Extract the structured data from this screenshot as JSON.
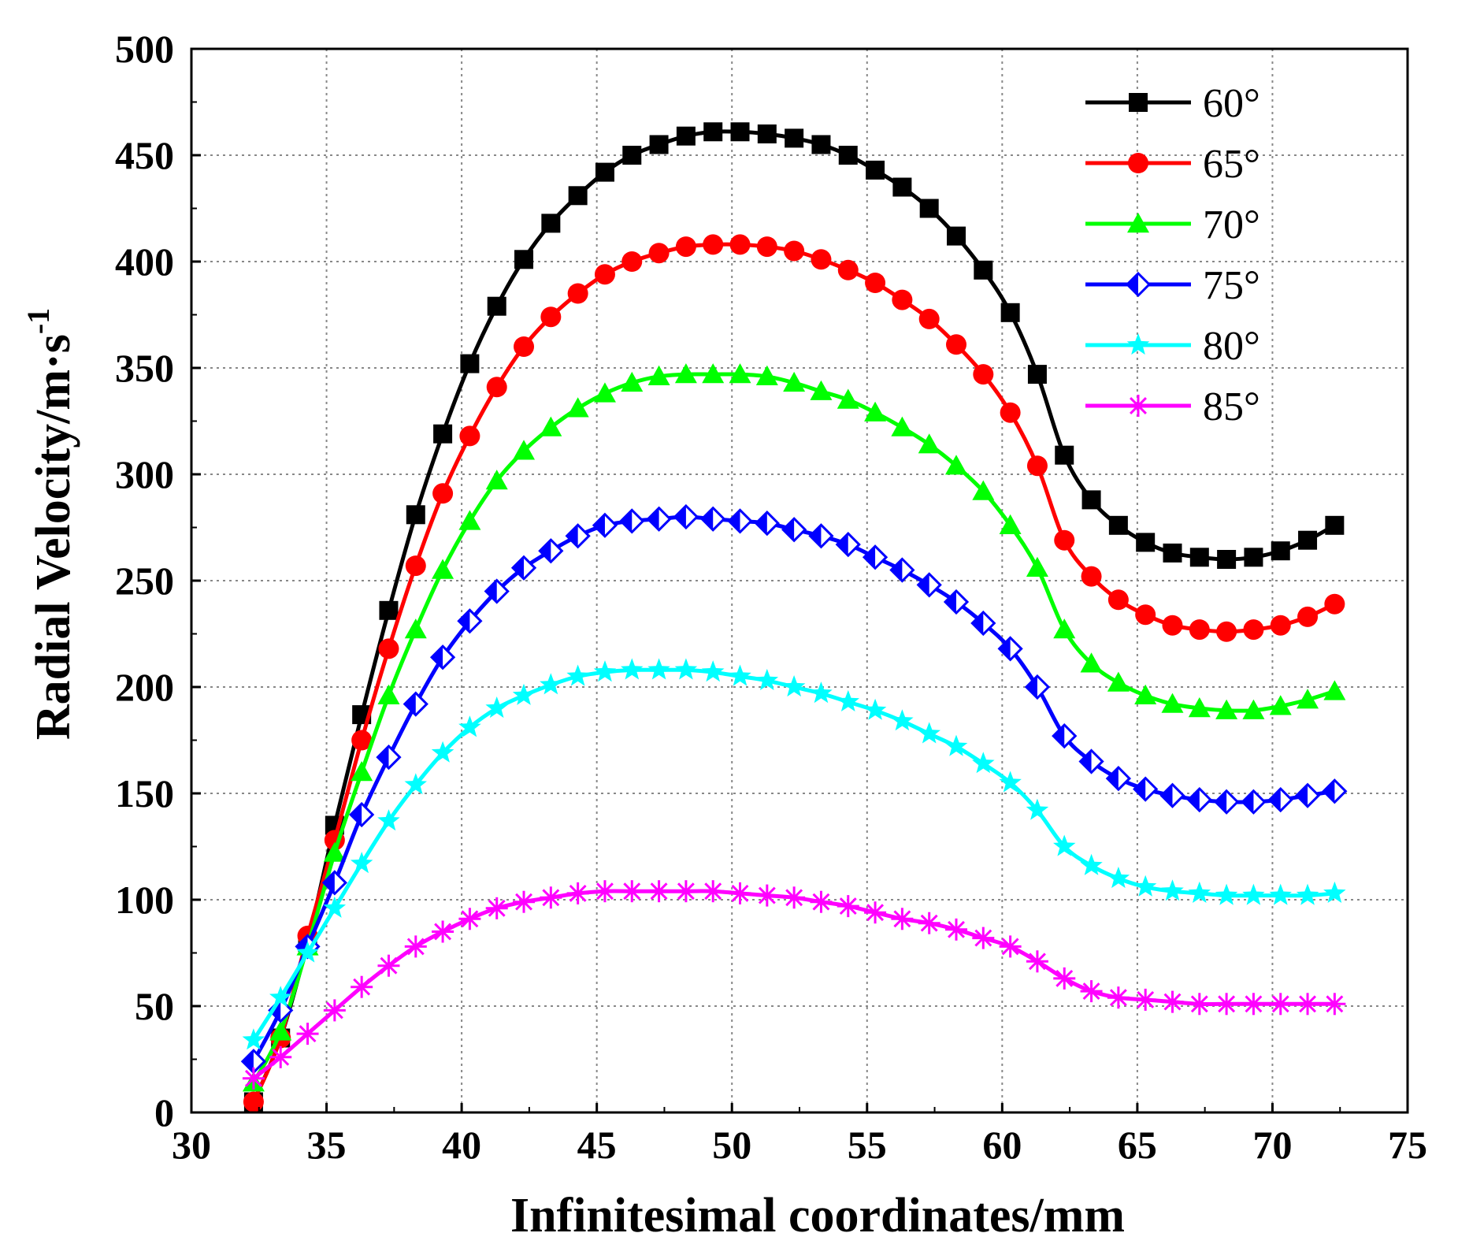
{
  "chart_data": {
    "type": "line",
    "title": "",
    "xlabel": "Infinitesimal coordinates/mm",
    "ylabel_main": "Radial Velocity/m·s",
    "ylabel_sup": "-1",
    "xlim": [
      30,
      75
    ],
    "ylim": [
      0,
      500
    ],
    "x_ticks": [
      "30",
      "35",
      "40",
      "45",
      "50",
      "55",
      "60",
      "65",
      "70",
      "75"
    ],
    "y_ticks": [
      "0",
      "50",
      "100",
      "150",
      "200",
      "250",
      "300",
      "350",
      "400",
      "450",
      "500"
    ],
    "grid": true,
    "legend_position": "top-right",
    "x": [
      32.3,
      33.3,
      34.3,
      35.3,
      36.3,
      37.3,
      38.3,
      39.3,
      40.3,
      41.3,
      42.3,
      43.3,
      44.3,
      45.3,
      46.3,
      47.3,
      48.3,
      49.3,
      50.3,
      51.3,
      52.3,
      53.3,
      54.3,
      55.3,
      56.3,
      57.3,
      58.3,
      59.3,
      60.3,
      61.3,
      62.3,
      63.3,
      64.3,
      65.3,
      66.3,
      67.3,
      68.3,
      69.3,
      70.3,
      71.3,
      72.3
    ],
    "series": [
      {
        "name": "60°",
        "color": "#000000",
        "marker": "square",
        "values": [
          5,
          35,
          80,
          135,
          187,
          236,
          281,
          319,
          352,
          379,
          401,
          418,
          431,
          442,
          450,
          455,
          459,
          461,
          461,
          460,
          458,
          455,
          450,
          443,
          435,
          425,
          412,
          396,
          376,
          347,
          309,
          288,
          276,
          268,
          263,
          261,
          260,
          261,
          264,
          269,
          276
        ]
      },
      {
        "name": "65°",
        "color": "#ff0000",
        "marker": "circle",
        "values": [
          5,
          35,
          83,
          128,
          175,
          218,
          257,
          291,
          318,
          341,
          360,
          374,
          385,
          394,
          400,
          404,
          407,
          408,
          408,
          407,
          405,
          401,
          396,
          390,
          382,
          373,
          361,
          347,
          329,
          304,
          269,
          252,
          241,
          234,
          229,
          227,
          226,
          227,
          229,
          233,
          239
        ]
      },
      {
        "name": "70°",
        "color": "#00ff00",
        "marker": "triangle",
        "values": [
          14,
          38,
          78,
          122,
          160,
          196,
          227,
          255,
          278,
          297,
          311,
          322,
          331,
          338,
          343,
          346,
          347,
          347,
          347,
          346,
          343,
          339,
          335,
          329,
          322,
          314,
          304,
          292,
          276,
          256,
          227,
          211,
          202,
          196,
          192,
          190,
          189,
          189,
          191,
          194,
          198
        ]
      },
      {
        "name": "75°",
        "color": "#0000ff",
        "marker": "diamond",
        "values": [
          24,
          48,
          78,
          108,
          140,
          167,
          192,
          214,
          231,
          245,
          256,
          264,
          271,
          276,
          278,
          279,
          280,
          279,
          278,
          277,
          274,
          271,
          267,
          261,
          255,
          248,
          240,
          230,
          218,
          200,
          177,
          165,
          157,
          152,
          149,
          147,
          146,
          146,
          147,
          149,
          151
        ]
      },
      {
        "name": "80°",
        "color": "#00ffff",
        "marker": "star",
        "values": [
          34,
          54,
          75,
          96,
          117,
          137,
          154,
          169,
          181,
          190,
          196,
          201,
          205,
          207,
          208,
          208,
          208,
          207,
          205,
          203,
          200,
          197,
          193,
          189,
          184,
          178,
          172,
          164,
          155,
          142,
          125,
          116,
          110,
          106,
          104,
          103,
          102,
          102,
          102,
          102,
          103
        ]
      },
      {
        "name": "85°",
        "color": "#ff00ff",
        "marker": "asterisk",
        "values": [
          16,
          26,
          37,
          48,
          59,
          69,
          78,
          85,
          91,
          96,
          99,
          101,
          103,
          104,
          104,
          104,
          104,
          104,
          103,
          102,
          101,
          99,
          97,
          94,
          91,
          89,
          86,
          82,
          78,
          71,
          63,
          57,
          54,
          53,
          52,
          51,
          51,
          51,
          51,
          51,
          51
        ]
      }
    ]
  }
}
